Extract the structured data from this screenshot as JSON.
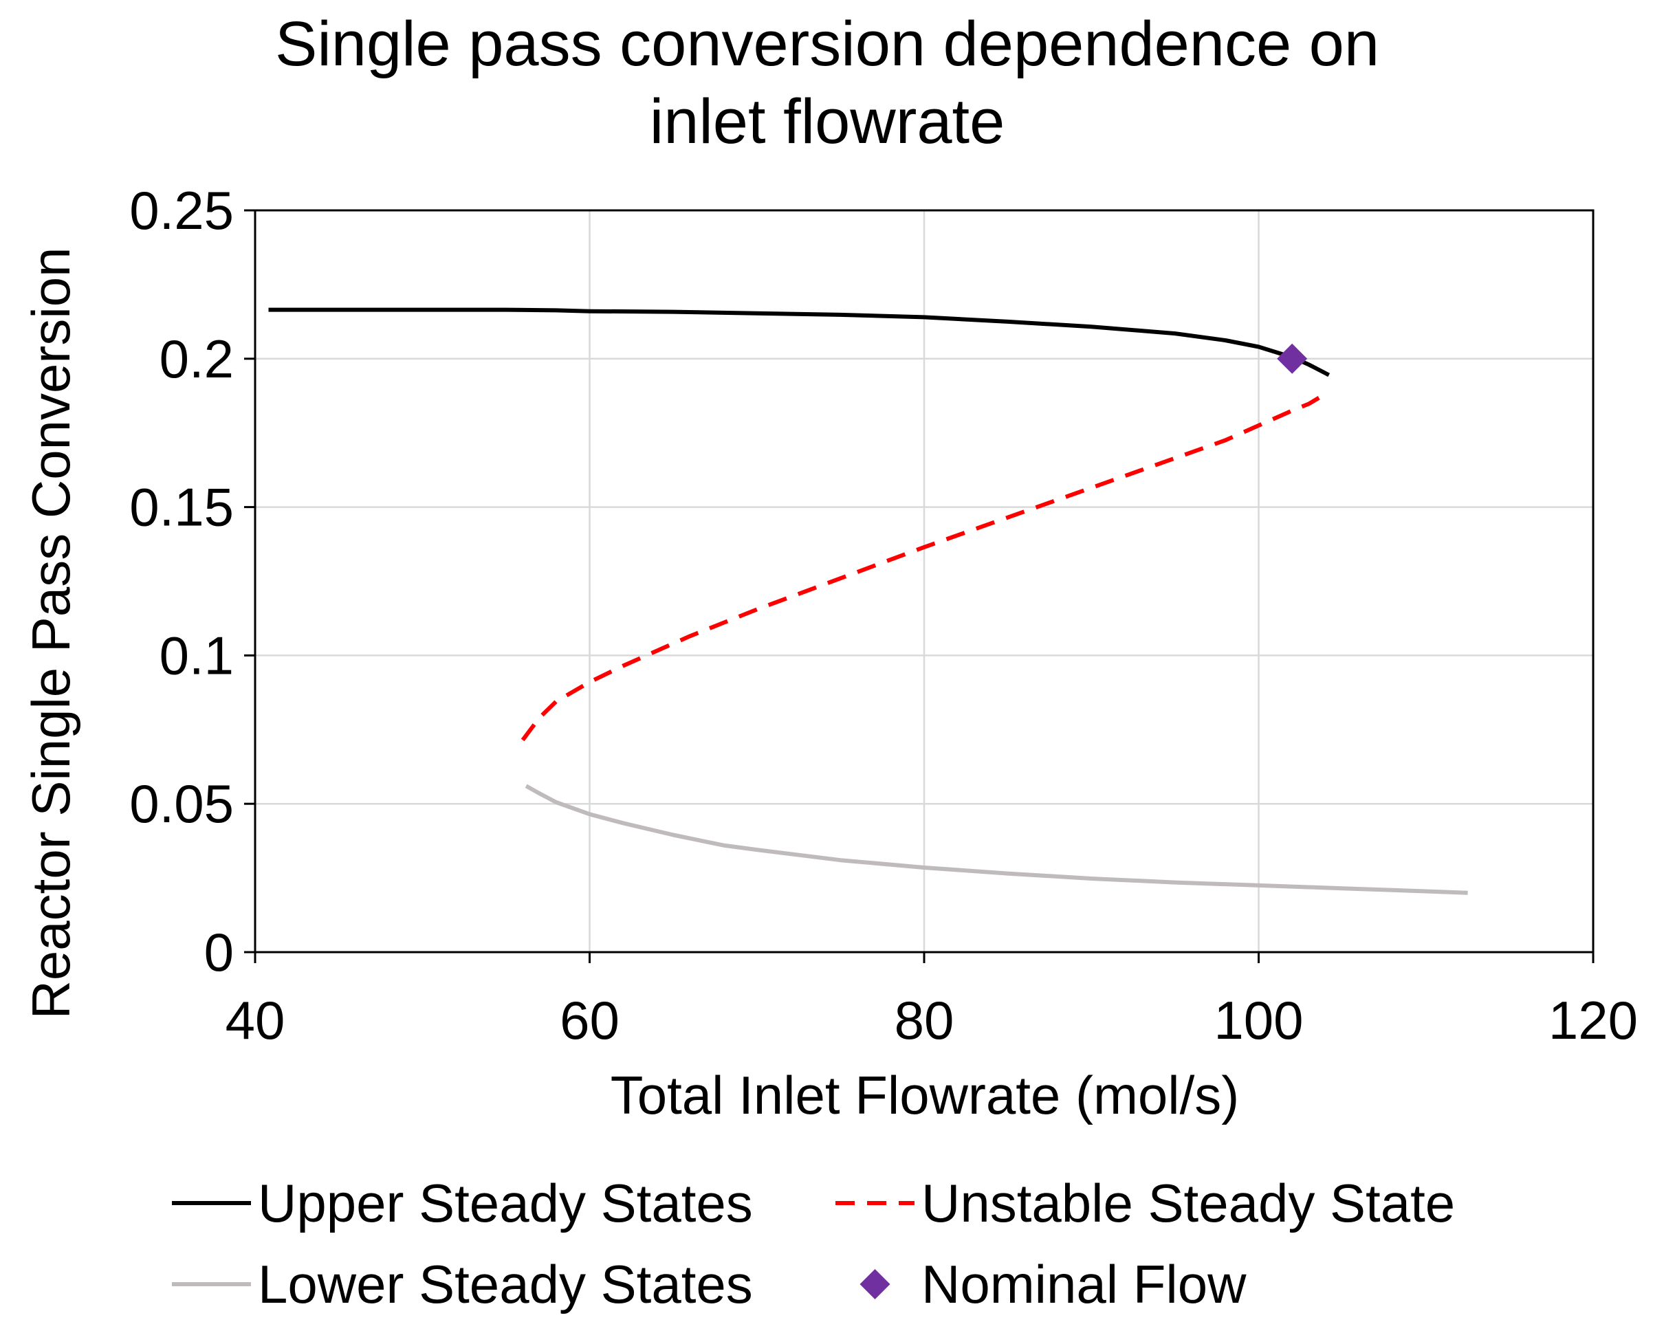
{
  "chart_data": {
    "type": "line",
    "title_lines": [
      "Single pass conversion dependence on",
      "inlet flowrate"
    ],
    "xlabel": "Total Inlet Flowrate (mol/s)",
    "ylabel": "Reactor Single Pass Conversion",
    "xlim": [
      40,
      120
    ],
    "ylim": [
      0,
      0.25
    ],
    "x_ticks": [
      40,
      60,
      80,
      100,
      120
    ],
    "x_tick_labels": [
      "40",
      "60",
      "80",
      "100",
      "120"
    ],
    "y_ticks": [
      0,
      0.05,
      0.1,
      0.15,
      0.2,
      0.25
    ],
    "y_tick_labels": [
      "0",
      "0.05",
      "0.1",
      "0.15",
      "0.2",
      "0.25"
    ],
    "grid": true,
    "legend_position": "bottom",
    "series": [
      {
        "name": "Upper Steady States",
        "color": "#000000",
        "style": "solid",
        "points": [
          [
            40.8,
            0.2165
          ],
          [
            45,
            0.2165
          ],
          [
            50,
            0.2165
          ],
          [
            55,
            0.2165
          ],
          [
            58,
            0.2163
          ],
          [
            60,
            0.216
          ],
          [
            65,
            0.2158
          ],
          [
            70,
            0.2153
          ],
          [
            75,
            0.2148
          ],
          [
            80,
            0.214
          ],
          [
            85,
            0.2125
          ],
          [
            90,
            0.2108
          ],
          [
            95,
            0.2085
          ],
          [
            98,
            0.2062
          ],
          [
            100,
            0.204
          ],
          [
            102,
            0.2005
          ],
          [
            103,
            0.198
          ],
          [
            104.2,
            0.1945
          ]
        ]
      },
      {
        "name": "Unstable Steady State",
        "color": "#ff0000",
        "style": "dashed",
        "points": [
          [
            56,
            0.0715
          ],
          [
            57,
            0.079
          ],
          [
            58,
            0.0845
          ],
          [
            60,
            0.091
          ],
          [
            62,
            0.0965
          ],
          [
            64,
            0.1015
          ],
          [
            66,
            0.1065
          ],
          [
            68,
            0.111
          ],
          [
            70,
            0.1155
          ],
          [
            75,
            0.126
          ],
          [
            80,
            0.1365
          ],
          [
            85,
            0.1465
          ],
          [
            90,
            0.1565
          ],
          [
            95,
            0.1665
          ],
          [
            98,
            0.1725
          ],
          [
            100,
            0.1775
          ],
          [
            102,
            0.1825
          ],
          [
            103,
            0.1848
          ],
          [
            103.8,
            0.1875
          ]
        ]
      },
      {
        "name": "Lower Steady States",
        "color": "#bfbbbd",
        "style": "solid",
        "points": [
          [
            56.2,
            0.056
          ],
          [
            57,
            0.0535
          ],
          [
            58,
            0.0505
          ],
          [
            60,
            0.0465
          ],
          [
            62,
            0.0435
          ],
          [
            65,
            0.0395
          ],
          [
            68,
            0.036
          ],
          [
            70,
            0.0345
          ],
          [
            75,
            0.031
          ],
          [
            80,
            0.0285
          ],
          [
            85,
            0.0265
          ],
          [
            90,
            0.0248
          ],
          [
            95,
            0.0235
          ],
          [
            100,
            0.0225
          ],
          [
            105,
            0.0215
          ],
          [
            110,
            0.0205
          ],
          [
            112.5,
            0.02
          ]
        ]
      },
      {
        "name": "Nominal Flow",
        "color": "#7030a0",
        "style": "marker",
        "points": [
          [
            102,
            0.2
          ]
        ]
      }
    ]
  }
}
